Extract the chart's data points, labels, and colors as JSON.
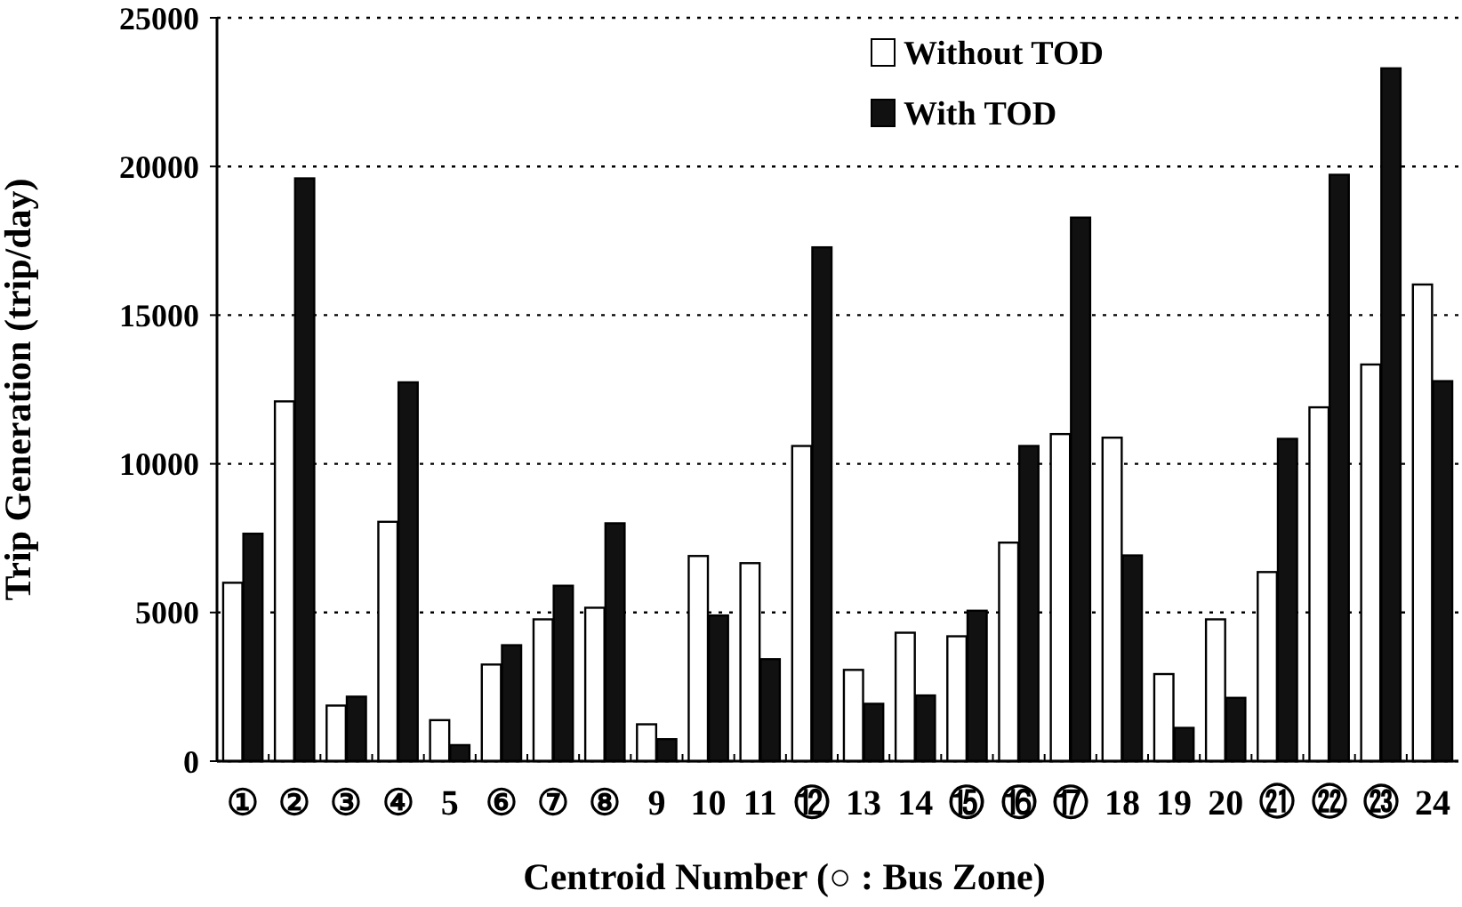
{
  "chart_data": {
    "type": "bar",
    "xlabel": "Centroid Number  (○ : Bus Zone)",
    "ylabel": "Trip Generation (trip/day)",
    "categories": [
      "①",
      "②",
      "③",
      "④",
      "5",
      "⑥",
      "⑦",
      "⑧",
      "9",
      "10",
      "11",
      "⑫",
      "13",
      "14",
      "⑮",
      "⑯",
      "⑰",
      "18",
      "19",
      "20",
      "㉑",
      "㉒",
      "㉓",
      "24"
    ],
    "series": [
      {
        "name": "Without TOD",
        "color": "#ffffff",
        "values": [
          6000,
          12100,
          1870,
          8050,
          1380,
          3250,
          4770,
          5160,
          1240,
          6900,
          6660,
          10600,
          3070,
          4320,
          4200,
          7350,
          11000,
          10880,
          2930,
          4770,
          6360,
          11900,
          13340,
          16030
        ]
      },
      {
        "name": "With TOD",
        "color": "#111111",
        "values": [
          7650,
          19600,
          2170,
          12740,
          540,
          3900,
          5900,
          8000,
          740,
          4900,
          3430,
          17280,
          1930,
          2210,
          5060,
          10600,
          18280,
          6920,
          1120,
          2130,
          10840,
          19720,
          23300,
          12780
        ]
      }
    ],
    "ylim": [
      0,
      25000
    ],
    "yticks": [
      0,
      5000,
      10000,
      15000,
      20000,
      25000
    ],
    "grid": "y",
    "legend": "top right"
  }
}
